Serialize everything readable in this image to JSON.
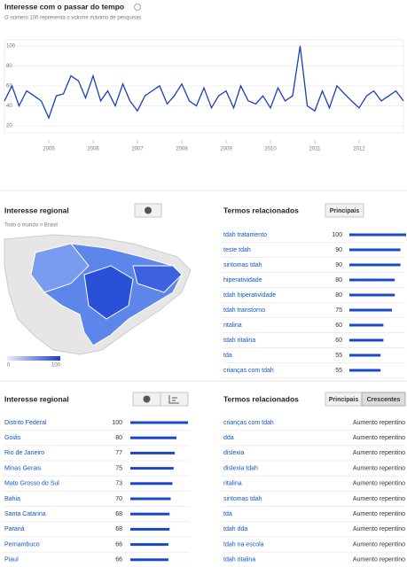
{
  "chart_data": {
    "type": "line",
    "title": "Interesse com o passar do tempo",
    "subtitle": "O número 100 representa o volume máximo de pesquisas",
    "x": [
      2004,
      2004.17,
      2004.33,
      2004.5,
      2004.67,
      2004.83,
      2005,
      2005.17,
      2005.33,
      2005.5,
      2005.67,
      2005.83,
      2006,
      2006.17,
      2006.33,
      2006.5,
      2006.67,
      2006.83,
      2007,
      2007.17,
      2007.33,
      2007.5,
      2007.67,
      2007.83,
      2008,
      2008.17,
      2008.33,
      2008.5,
      2008.67,
      2008.83,
      2009,
      2009.17,
      2009.33,
      2009.5,
      2009.67,
      2009.83,
      2010,
      2010.17,
      2010.33,
      2010.5,
      2010.67,
      2010.83,
      2011,
      2011.17,
      2011.33,
      2011.5,
      2011.67,
      2011.83,
      2012,
      2012.17,
      2012.33,
      2012.5,
      2012.67,
      2012.83,
      2013
    ],
    "values": [
      45,
      60,
      40,
      55,
      50,
      45,
      28,
      50,
      52,
      70,
      65,
      48,
      70,
      45,
      55,
      40,
      62,
      45,
      35,
      50,
      55,
      60,
      42,
      50,
      62,
      45,
      40,
      58,
      38,
      50,
      55,
      38,
      60,
      45,
      42,
      50,
      38,
      58,
      45,
      50,
      100,
      40,
      35,
      55,
      38,
      60,
      52,
      45,
      38,
      50,
      55,
      45,
      50,
      55,
      45
    ],
    "color": "#1a3fb5",
    "xlim": [
      2004,
      2013
    ],
    "xticks": [
      2005,
      2006,
      2007,
      2008,
      2009,
      2010,
      2011,
      2012
    ],
    "ylim": [
      13,
      106
    ],
    "yticks": [
      20,
      40,
      60,
      80,
      100
    ],
    "grid": true
  },
  "regional_top": {
    "title": "Interesse regional",
    "breadcrumb": "Todo o mundo > Brasil",
    "legend": [
      "0",
      "100"
    ]
  },
  "related_top": {
    "title": "Termos relacionados",
    "button": "Principais",
    "rows": [
      {
        "term": "tdah tratamento",
        "value": 100
      },
      {
        "term": "teste tdah",
        "value": 90
      },
      {
        "term": "sintomas tdah",
        "value": 90
      },
      {
        "term": "hiperatividade",
        "value": 80
      },
      {
        "term": "tdah hiperatividade",
        "value": 80
      },
      {
        "term": "tdah transtorno",
        "value": 75
      },
      {
        "term": "ritalina",
        "value": 60
      },
      {
        "term": "tdah ritalina",
        "value": 60
      },
      {
        "term": "tda",
        "value": 55
      },
      {
        "term": "crianças com tdah",
        "value": 55
      }
    ]
  },
  "regional": {
    "title": "Interesse regional",
    "rows": [
      {
        "name": "Distrito Federal",
        "value": 100
      },
      {
        "name": "Goiás",
        "value": 80
      },
      {
        "name": "Rio de Janeiro",
        "value": 77
      },
      {
        "name": "Minas Gerais",
        "value": 75
      },
      {
        "name": "Mato Grosso do Sul",
        "value": 73
      },
      {
        "name": "Bahia",
        "value": 70
      },
      {
        "name": "Santa Catarina",
        "value": 68
      },
      {
        "name": "Paraná",
        "value": 68
      },
      {
        "name": "Pernambuco",
        "value": 66
      },
      {
        "name": "Piauí",
        "value": 66
      }
    ]
  },
  "related_rising": {
    "title": "Termos relacionados",
    "buttons": [
      "Principais",
      "Crescentes"
    ],
    "rows": [
      {
        "term": "crianças com tdah",
        "label": "Aumento repentino"
      },
      {
        "term": "dda",
        "label": "Aumento repentino"
      },
      {
        "term": "dislexia",
        "label": "Aumento repentino"
      },
      {
        "term": "dislexia tdah",
        "label": "Aumento repentino"
      },
      {
        "term": "ritalina",
        "label": "Aumento repentino"
      },
      {
        "term": "sintomas tdah",
        "label": "Aumento repentino"
      },
      {
        "term": "tda",
        "label": "Aumento repentino"
      },
      {
        "term": "tdah dda",
        "label": "Aumento repentino"
      },
      {
        "term": "tdah na escola",
        "label": "Aumento repentino"
      },
      {
        "term": "tdah ritalina",
        "label": "Aumento repentino"
      }
    ]
  }
}
